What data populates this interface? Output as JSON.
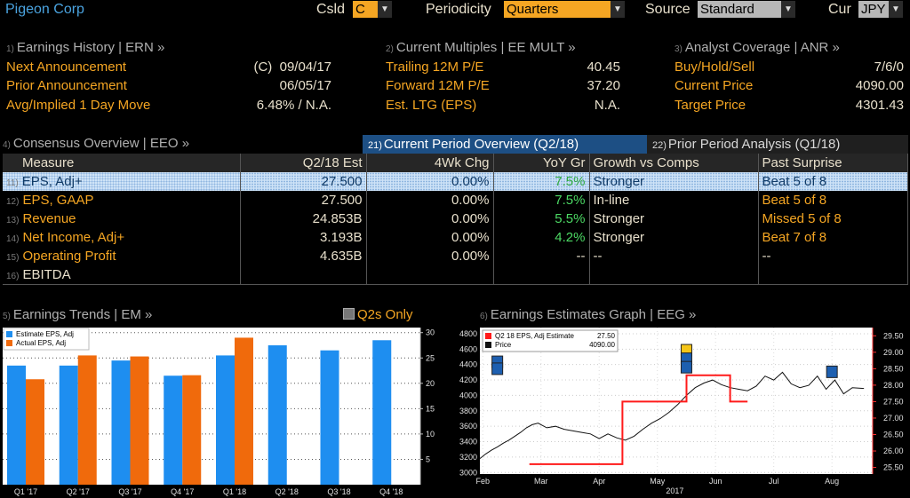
{
  "header": {
    "company": "Pigeon Corp",
    "csld_label": "Csld",
    "csld_value": "C",
    "periodicity_label": "Periodicity",
    "periodicity_value": "Quarters",
    "source_label": "Source",
    "source_value": "Standard",
    "cur_label": "Cur",
    "cur_value": "JPY"
  },
  "earnings_history": {
    "num": "1)",
    "title": "Earnings History | ERN »",
    "rows": [
      {
        "label": "Next Announcement",
        "value": "(C)  09/04/17"
      },
      {
        "label": "Prior Announcement",
        "value": "06/05/17"
      },
      {
        "label": "Avg/Implied 1 Day Move",
        "value": "6.48% / N.A."
      }
    ]
  },
  "current_multiples": {
    "num": "2)",
    "title": "Current Multiples | EE MULT »",
    "rows": [
      {
        "label": "Trailing 12M P/E",
        "value": "40.45"
      },
      {
        "label": "Forward 12M P/E",
        "value": "37.20"
      },
      {
        "label": "Est. LTG (EPS)",
        "value": "N.A."
      }
    ]
  },
  "analyst_coverage": {
    "num": "3)",
    "title": "Analyst Coverage | ANR »",
    "rows": [
      {
        "label": "Buy/Hold/Sell",
        "value": "7/6/0"
      },
      {
        "label": "Current Price",
        "value": "4090.00"
      },
      {
        "label": "Target Price",
        "value": "4301.43"
      }
    ]
  },
  "consensus": {
    "num": "4)",
    "title": "Consensus Overview | EEO »",
    "tab_current": {
      "num": "21)",
      "label": "Current Period Overview (Q2/18)"
    },
    "tab_prior": {
      "num": "22)",
      "label": "Prior Period Analysis (Q1/18)"
    },
    "columns": [
      "Measure",
      "Q2/18 Est",
      "4Wk Chg",
      "YoY Gr",
      "Growth vs Comps",
      "Past Surprise"
    ],
    "rows": [
      {
        "num": "11)",
        "measure": "EPS, Adj+",
        "est": "27.500",
        "chg": "0.00%",
        "yoy": "7.5%",
        "growth": "Stronger",
        "surprise": "Beat 5 of 8"
      },
      {
        "num": "12)",
        "measure": "EPS, GAAP",
        "est": "27.500",
        "chg": "0.00%",
        "yoy": "7.5%",
        "growth": "In-line",
        "surprise": "Beat 5 of 8"
      },
      {
        "num": "13)",
        "measure": "Revenue",
        "est": "24.853B",
        "chg": "0.00%",
        "yoy": "5.5%",
        "growth": "Stronger",
        "surprise": "Missed 5 of 8"
      },
      {
        "num": "14)",
        "measure": "Net Income, Adj+",
        "est": "3.193B",
        "chg": "0.00%",
        "yoy": "4.2%",
        "growth": "Stronger",
        "surprise": "Beat 7 of 8"
      },
      {
        "num": "15)",
        "measure": "Operating Profit",
        "est": "4.635B",
        "chg": "0.00%",
        "yoy": "--",
        "growth": "--",
        "surprise": "--"
      },
      {
        "num": "16)",
        "measure": "EBITDA",
        "est": "",
        "chg": "",
        "yoy": "",
        "growth": "",
        "surprise": ""
      }
    ]
  },
  "earnings_trends": {
    "num": "5)",
    "title": "Earnings Trends | EM »",
    "toggle_label": "Q2s Only"
  },
  "earnings_graph": {
    "num": "6)",
    "title": "Earnings Estimates Graph | EEG »"
  },
  "colors": {
    "amber": "#f5a623",
    "estimate_blue": "#1e8ef0",
    "actual_orange": "#f06a0c",
    "estimate_red": "#ff1a1a",
    "positive_green": "#4cd964",
    "tab_active": "#1d4f84"
  },
  "chart_data": [
    {
      "type": "bar",
      "categories": [
        "Q1 '17",
        "Q2 '17",
        "Q3 '17",
        "Q4 '17",
        "Q1 '18",
        "Q2 '18",
        "Q3 '18",
        "Q4 '18"
      ],
      "series": [
        {
          "name": "Estimate EPS, Adj",
          "values": [
            23.5,
            23.5,
            24.5,
            21.5,
            25.5,
            27.5,
            26.5,
            28.5
          ]
        },
        {
          "name": "Actual EPS, Adj",
          "values": [
            20.8,
            25.5,
            25.3,
            21.6,
            29.0,
            null,
            null,
            null
          ]
        }
      ],
      "yticks": [
        5,
        10,
        15,
        20,
        25,
        30
      ],
      "ylim": [
        0,
        31
      ],
      "y_axis": "right",
      "legend": "top-left"
    },
    {
      "type": "line",
      "x_labels": [
        "Feb",
        "Mar",
        "Apr",
        "May",
        "Jun",
        "Jul",
        "Aug"
      ],
      "year_label": "2017",
      "series": [
        {
          "name": "Q2 18 EPS, Adj Estimate",
          "last_value": "27.50",
          "axis": "right"
        },
        {
          "name": "Price",
          "last_value": "4090.00",
          "axis": "left"
        }
      ],
      "left_ticks": [
        3000,
        3200,
        3400,
        3600,
        3800,
        4000,
        4200,
        4400,
        4600,
        4800
      ],
      "right_ticks": [
        25.5,
        26.0,
        26.5,
        27.0,
        27.5,
        28.0,
        28.5,
        29.0,
        29.5
      ],
      "right_tick_labels": [
        "25.50",
        "26.00",
        "26.50",
        "27.00",
        "27.50",
        "28.00",
        "28.50",
        "29.00",
        "29.50"
      ],
      "left_ylim": [
        2980,
        4880
      ],
      "right_ylim": [
        25.3,
        29.75
      ],
      "price_x_month_index": [
        0.0,
        0.1,
        0.2,
        0.3,
        0.4,
        0.5,
        0.6,
        0.7,
        0.8,
        0.9,
        1.0,
        1.15,
        1.3,
        1.45,
        1.6,
        1.75,
        1.9,
        2.05,
        2.2,
        2.35,
        2.5,
        2.65,
        2.8,
        2.95,
        3.1,
        3.25,
        3.4,
        3.55,
        3.7,
        3.85,
        4.0,
        4.15,
        4.3,
        4.45,
        4.6,
        4.75,
        4.9,
        5.05,
        5.2,
        5.35,
        5.5,
        5.65,
        5.8,
        5.95,
        6.1,
        6.25,
        6.4,
        6.6
      ],
      "price_values": [
        3180,
        3240,
        3290,
        3330,
        3380,
        3420,
        3470,
        3520,
        3580,
        3620,
        3640,
        3580,
        3600,
        3560,
        3540,
        3520,
        3500,
        3440,
        3500,
        3450,
        3420,
        3470,
        3560,
        3640,
        3700,
        3780,
        3880,
        4000,
        4100,
        4160,
        4200,
        4140,
        4100,
        4080,
        4060,
        4120,
        4250,
        4200,
        4300,
        4150,
        4100,
        4130,
        4250,
        4080,
        4200,
        4020,
        4100,
        4090
      ],
      "estimate_x_month_index": [
        0.85,
        2.45,
        2.45,
        2.55,
        2.55,
        3.55,
        3.55,
        4.3,
        4.3,
        4.6
      ],
      "estimate_values": [
        25.6,
        25.6,
        27.5,
        27.5,
        27.5,
        27.5,
        28.3,
        28.3,
        27.5,
        27.5
      ]
    }
  ]
}
